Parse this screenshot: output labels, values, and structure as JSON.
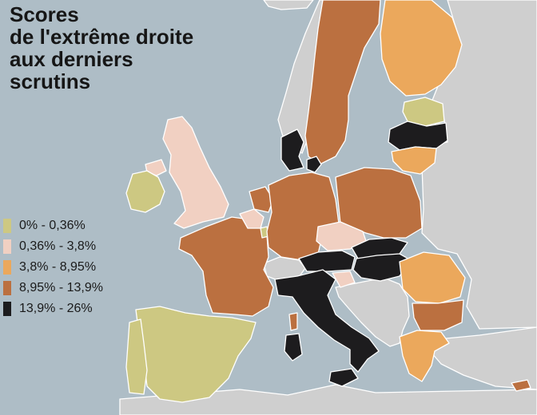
{
  "title_lines": [
    "Scores",
    "de l'extrême droite",
    "aux derniers",
    "scrutins"
  ],
  "legend": [
    {
      "label": "0% - 0,36%",
      "color": "#cdc882"
    },
    {
      "label": "0,36% - 3,8%",
      "color": "#f1d0c2"
    },
    {
      "label": "3,8% - 8,95%",
      "color": "#eba85c"
    },
    {
      "label": "8,95% - 13,9%",
      "color": "#bb7040"
    },
    {
      "label": "13,9% - 26%",
      "color": "#1d1c1e"
    }
  ],
  "colors": {
    "sea": "#aebdc6",
    "no_data": "#cfcfcf",
    "border": "#ffffff"
  },
  "regions": [
    {
      "name": "Ireland",
      "category": 0
    },
    {
      "name": "Spain",
      "category": 0
    },
    {
      "name": "Portugal",
      "category": 0
    },
    {
      "name": "Estonia",
      "category": 0
    },
    {
      "name": "Luxembourg",
      "category": 0
    },
    {
      "name": "United Kingdom",
      "category": 1
    },
    {
      "name": "Northern Ireland",
      "category": 1
    },
    {
      "name": "Czech Republic",
      "category": 1
    },
    {
      "name": "Slovenia",
      "category": 1
    },
    {
      "name": "Belgium",
      "category": 1
    },
    {
      "name": "Finland",
      "category": 2
    },
    {
      "name": "Lithuania",
      "category": 2
    },
    {
      "name": "Romania",
      "category": 2
    },
    {
      "name": "Greece",
      "category": 2
    },
    {
      "name": "Sweden",
      "category": 3
    },
    {
      "name": "France",
      "category": 3
    },
    {
      "name": "Netherlands",
      "category": 3
    },
    {
      "name": "Germany",
      "category": 3
    },
    {
      "name": "Poland",
      "category": 3
    },
    {
      "name": "Bulgaria",
      "category": 3
    },
    {
      "name": "Corsica",
      "category": 3
    },
    {
      "name": "Cyprus",
      "category": 3
    },
    {
      "name": "Denmark",
      "category": 4
    },
    {
      "name": "Latvia",
      "category": 4
    },
    {
      "name": "Austria",
      "category": 4
    },
    {
      "name": "Slovakia",
      "category": 4
    },
    {
      "name": "Hungary",
      "category": 4
    },
    {
      "name": "Italy",
      "category": 4
    },
    {
      "name": "Sardinia",
      "category": 4
    },
    {
      "name": "Sicily",
      "category": 4
    },
    {
      "name": "Norway",
      "category": -1
    },
    {
      "name": "Iceland",
      "category": -1
    },
    {
      "name": "Switzerland",
      "category": -1
    },
    {
      "name": "Balkans",
      "category": -1
    },
    {
      "name": "Eastern Europe",
      "category": -1
    },
    {
      "name": "Turkey",
      "category": -1
    },
    {
      "name": "North Africa",
      "category": -1
    }
  ]
}
